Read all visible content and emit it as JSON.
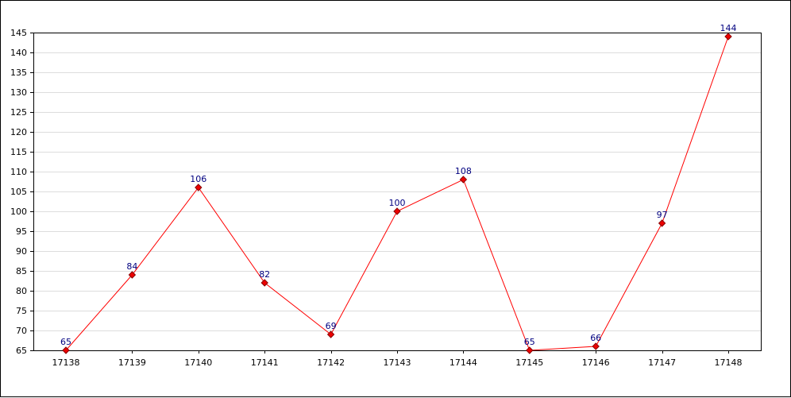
{
  "chart_data": {
    "type": "line",
    "title": "",
    "xlabel": "",
    "ylabel": "",
    "categories": [
      "17138",
      "17139",
      "17140",
      "17141",
      "17142",
      "17143",
      "17144",
      "17145",
      "17146",
      "17147",
      "17148"
    ],
    "series": [
      {
        "values": [
          65,
          84,
          106,
          82,
          69,
          100,
          108,
          65,
          66,
          97,
          144
        ]
      }
    ],
    "ylim": [
      65,
      145
    ],
    "yticks": [
      65,
      70,
      75,
      80,
      85,
      90,
      95,
      100,
      105,
      110,
      115,
      120,
      125,
      130,
      135,
      140,
      145
    ],
    "grid": true,
    "show_data_labels": true,
    "colors": {
      "line": "#ff0000",
      "marker_fill": "#ee0000",
      "marker_stroke": "#880000",
      "data_label": "#000080",
      "grid": "#dddddd",
      "axis": "#000000"
    }
  }
}
